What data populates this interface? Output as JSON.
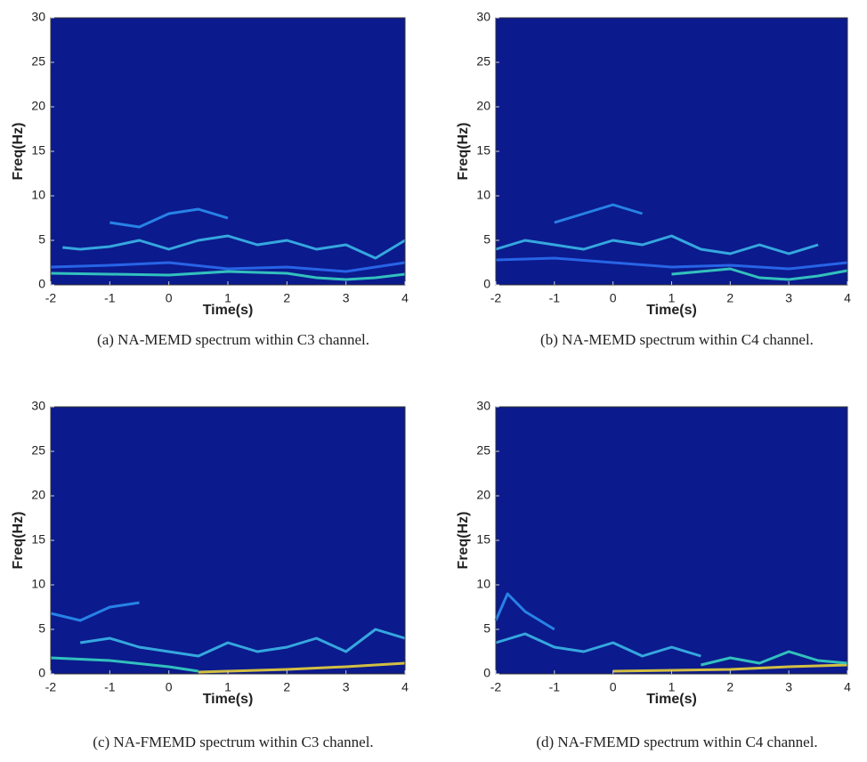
{
  "chart_data": [
    {
      "type": "spectrogram",
      "xlabel": "Time(s)",
      "ylabel": "Freq(Hz)",
      "caption": "(a) NA-MEMD spectrum within C3 channel.",
      "background": "#0b1a8c",
      "xlim": [
        -2,
        4
      ],
      "ylim": [
        0,
        30
      ],
      "xticks": [
        -2,
        -1,
        0,
        1,
        2,
        3,
        4
      ],
      "yticks": [
        0,
        5,
        10,
        15,
        20,
        25,
        30
      ],
      "series": [
        {
          "color": "#36d3c2",
          "x": [
            -2,
            -1,
            0,
            1,
            2,
            2.5,
            3,
            3.5,
            4
          ],
          "values": [
            1.3,
            1.2,
            1.1,
            1.5,
            1.3,
            0.8,
            0.6,
            0.8,
            1.2
          ]
        },
        {
          "color": "#2a6df0",
          "x": [
            -2,
            -1,
            0,
            1,
            2,
            3,
            4
          ],
          "values": [
            2,
            2.2,
            2.5,
            1.8,
            2,
            1.5,
            2.5
          ]
        },
        {
          "color": "#3ab7e8",
          "x": [
            -1.8,
            -1.5,
            -1,
            -0.5,
            0,
            0.5,
            1,
            1.5,
            2,
            2.5,
            3,
            3.5,
            4
          ],
          "values": [
            4.2,
            4,
            4.3,
            5,
            4,
            5,
            5.5,
            4.5,
            5,
            4,
            4.5,
            3,
            5
          ]
        },
        {
          "color": "#2a8ef0",
          "x": [
            -1,
            -0.5,
            0,
            0.5,
            1
          ],
          "values": [
            7,
            6.5,
            8,
            8.5,
            7.5
          ]
        }
      ]
    },
    {
      "type": "spectrogram",
      "xlabel": "Time(s)",
      "ylabel": "Freq(Hz)",
      "caption": "(b) NA-MEMD spectrum within C4 channel.",
      "background": "#0b1a8c",
      "xlim": [
        -2,
        4
      ],
      "ylim": [
        0,
        30
      ],
      "xticks": [
        -2,
        -1,
        0,
        1,
        2,
        3,
        4
      ],
      "yticks": [
        0,
        5,
        10,
        15,
        20,
        25,
        30
      ],
      "series": [
        {
          "color": "#36d3c2",
          "x": [
            1,
            1.5,
            2,
            2.5,
            3,
            3.5,
            4
          ],
          "values": [
            1.2,
            1.5,
            1.8,
            0.8,
            0.6,
            1,
            1.6
          ]
        },
        {
          "color": "#2a6df0",
          "x": [
            -2,
            -1,
            0,
            1,
            2,
            3,
            4
          ],
          "values": [
            2.8,
            3,
            2.5,
            2,
            2.2,
            1.8,
            2.5
          ]
        },
        {
          "color": "#3ab7e8",
          "x": [
            -2,
            -1.5,
            -1,
            -0.5,
            0,
            0.5,
            1,
            1.5,
            2,
            2.5,
            3,
            3.5
          ],
          "values": [
            4,
            5,
            4.5,
            4,
            5,
            4.5,
            5.5,
            4,
            3.5,
            4.5,
            3.5,
            4.5
          ]
        },
        {
          "color": "#2a8ef0",
          "x": [
            -1,
            -0.5,
            0,
            0.5
          ],
          "values": [
            7,
            8,
            9,
            8
          ]
        }
      ]
    },
    {
      "type": "spectrogram",
      "xlabel": "Time(s)",
      "ylabel": "Freq(Hz)",
      "caption": "(c) NA-FMEMD spectrum within C3 channel.",
      "background": "#0b1a8c",
      "xlim": [
        -2,
        4
      ],
      "ylim": [
        0,
        30
      ],
      "xticks": [
        -2,
        -1,
        0,
        1,
        2,
        3,
        4
      ],
      "yticks": [
        0,
        5,
        10,
        15,
        20,
        25,
        30
      ],
      "series": [
        {
          "color": "#36d3c2",
          "x": [
            -2,
            -1,
            0,
            0.5
          ],
          "values": [
            1.8,
            1.5,
            0.8,
            0.3
          ]
        },
        {
          "color": "#e8d23a",
          "x": [
            0.5,
            1,
            2,
            3,
            4
          ],
          "values": [
            0.2,
            0.3,
            0.5,
            0.8,
            1.2
          ]
        },
        {
          "color": "#3ab7e8",
          "x": [
            -1.5,
            -1,
            -0.5,
            0,
            0.5,
            1,
            1.5,
            2,
            2.5,
            3,
            3.5,
            4
          ],
          "values": [
            3.5,
            4,
            3,
            2.5,
            2,
            3.5,
            2.5,
            3,
            4,
            2.5,
            5,
            4
          ]
        },
        {
          "color": "#2a8ef0",
          "x": [
            -2,
            -1.5,
            -1,
            -0.5
          ],
          "values": [
            6.8,
            6,
            7.5,
            8
          ]
        }
      ]
    },
    {
      "type": "spectrogram",
      "xlabel": "Time(s)",
      "ylabel": "Freq(Hz)",
      "caption": "(d) NA-FMEMD spectrum within C4 channel.",
      "background": "#0b1a8c",
      "xlim": [
        -2,
        4
      ],
      "ylim": [
        0,
        30
      ],
      "xticks": [
        -2,
        -1,
        0,
        1,
        2,
        3,
        4
      ],
      "yticks": [
        0,
        5,
        10,
        15,
        20,
        25,
        30
      ],
      "series": [
        {
          "color": "#e8d23a",
          "x": [
            0,
            1,
            2,
            3,
            4
          ],
          "values": [
            0.3,
            0.4,
            0.5,
            0.8,
            1
          ]
        },
        {
          "color": "#36d3c2",
          "x": [
            1.5,
            2,
            2.5,
            3,
            3.5,
            4
          ],
          "values": [
            1,
            1.8,
            1.2,
            2.5,
            1.5,
            1.2
          ]
        },
        {
          "color": "#3ab7e8",
          "x": [
            -2,
            -1.5,
            -1,
            -0.5,
            0,
            0.5,
            1,
            1.5
          ],
          "values": [
            3.5,
            4.5,
            3,
            2.5,
            3.5,
            2,
            3,
            2
          ]
        },
        {
          "color": "#2a8ef0",
          "x": [
            -2,
            -1.8,
            -1.5,
            -1
          ],
          "values": [
            6,
            9,
            7,
            5
          ]
        }
      ]
    }
  ]
}
